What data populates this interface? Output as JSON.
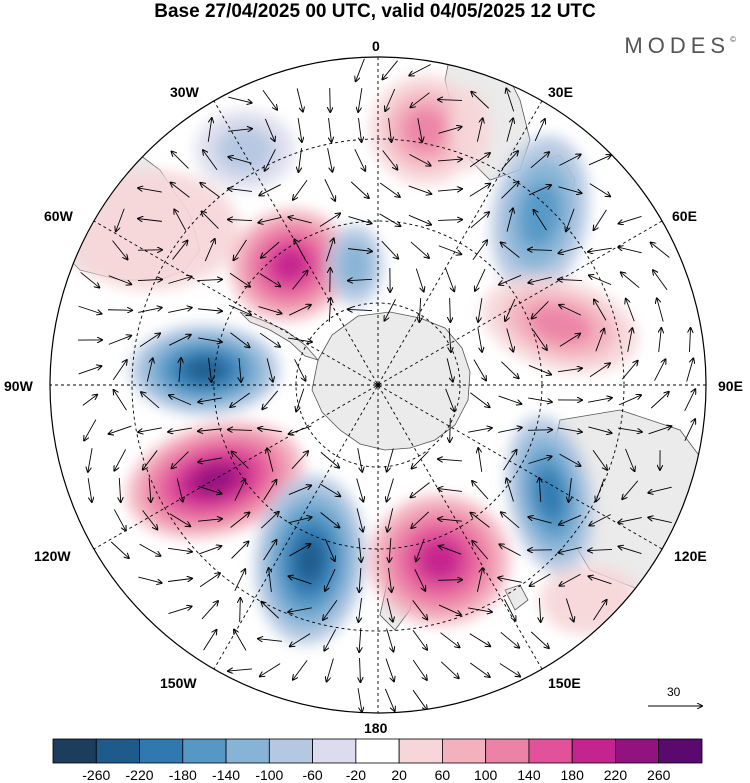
{
  "title": "Base 27/04/2025 00 UTC, valid 04/05/2025 12 UTC",
  "logo": "MODES",
  "logo_mark": "©",
  "longitude_labels": [
    "0",
    "30E",
    "60E",
    "90E",
    "120E",
    "150E",
    "180",
    "150W",
    "120W",
    "90W",
    "60W",
    "30W"
  ],
  "reference_vector": {
    "label": "30"
  },
  "colorbar": {
    "ticks": [
      "-260",
      "-220",
      "-180",
      "-140",
      "-100",
      "-60",
      "-20",
      "20",
      "60",
      "100",
      "140",
      "180",
      "220",
      "260"
    ],
    "colors": [
      "#1d3d5c",
      "#1e5a8a",
      "#2f78b0",
      "#5598c6",
      "#86b3d6",
      "#b4c8e2",
      "#dcdcee",
      "#ffffff",
      "#f6d6d8",
      "#f3b0bd",
      "#ec82a6",
      "#e2529a",
      "#c4248e",
      "#92127f",
      "#5a0a6e"
    ]
  },
  "colors": {
    "land": "#ededed",
    "frame": "#000000",
    "grid": "#000000"
  }
}
